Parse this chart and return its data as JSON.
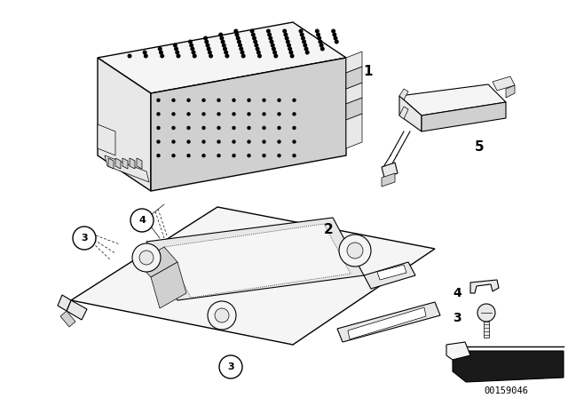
{
  "bg_color": "#ffffff",
  "line_color": "#000000",
  "diagram_number": "00159046",
  "lw": 0.8,
  "lw_thin": 0.5,
  "lw_thick": 1.0,
  "dot_color": "#444444",
  "fill_light": "#f5f5f5",
  "fill_mid": "#e8e8e8",
  "fill_dark": "#d0d0d0",
  "fill_vdark": "#888888"
}
